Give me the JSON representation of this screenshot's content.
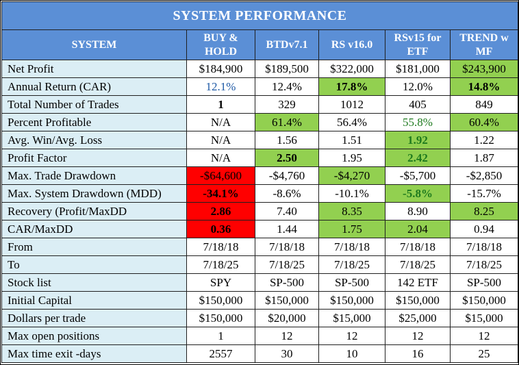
{
  "title": "SYSTEM  PERFORMANCE",
  "colors": {
    "header_blue": "#5b8fd6",
    "label_blue": "#dbeef5",
    "highlight_green": "#92d050",
    "highlight_red": "#ff0000"
  },
  "header": {
    "system": "SYSTEM",
    "columns": [
      {
        "line1": "BUY &",
        "line2": "HOLD"
      },
      {
        "line1": "BTDv7.1",
        "line2": ""
      },
      {
        "line1": "RS v16.0",
        "line2": ""
      },
      {
        "line1": "RSv15 for",
        "line2": "ETF"
      },
      {
        "line1": "TREND w",
        "line2": "MF"
      }
    ]
  },
  "rows": [
    {
      "label": "Net Profit",
      "cells": [
        "$184,900",
        "$189,500",
        "$322,000",
        "$181,000",
        "$243,900"
      ]
    },
    {
      "label": "Annual Return (CAR)",
      "cells": [
        "12.1%",
        "12.4%",
        "17.8%",
        "12.0%",
        "14.8%"
      ]
    },
    {
      "label": "Total Number of Trades",
      "cells": [
        "1",
        "329",
        "1012",
        "405",
        "849"
      ]
    },
    {
      "label": "Percent Profitable",
      "cells": [
        "N/A",
        "61.4%",
        "56.4%",
        "55.8%",
        "60.4%"
      ]
    },
    {
      "label": "Avg. Win/Avg. Loss",
      "cells": [
        "N/A",
        "1.56",
        "1.51",
        "1.92",
        "1.22"
      ]
    },
    {
      "label": "Profit Factor",
      "cells": [
        "N/A",
        "2.50",
        "1.95",
        "2.42",
        "1.87"
      ]
    },
    {
      "label": "Max. Trade Drawdown",
      "cells": [
        "-$64,600",
        "-$4,760",
        "-$4,270",
        "-$5,700",
        "-$2,850"
      ]
    },
    {
      "label": "Max. System Drawdown (MDD)",
      "cells": [
        "-34.1%",
        "-8.6%",
        "-10.1%",
        "-5.8%",
        "-15.7%"
      ]
    },
    {
      "label": "Recovery (Profit/MaxDD",
      "cells": [
        "2.86",
        "7.40",
        "8.35",
        "8.90",
        "8.25"
      ]
    },
    {
      "label": "CAR/MaxDD",
      "cells": [
        "0.36",
        "1.44",
        "1.75",
        "2.04",
        "0.94"
      ]
    },
    {
      "label": "From",
      "cells": [
        "7/18/18",
        "7/18/18",
        "7/18/18",
        "7/18/18",
        "7/18/18"
      ]
    },
    {
      "label": "To",
      "cells": [
        "7/18/25",
        "7/18/25",
        "7/18/25",
        "7/18/25",
        "7/18/25"
      ]
    },
    {
      "label": "Stock list",
      "cells": [
        "SPY",
        "SP-500",
        "SP-500",
        "142 ETF",
        "SP-500"
      ]
    },
    {
      "label": "Initial Capital",
      "cells": [
        "$150,000",
        "$150,000",
        "$150,000",
        "$150,000",
        "$150,000"
      ]
    },
    {
      "label": "Dollars per trade",
      "cells": [
        "$150,000",
        "$20,000",
        "$15,000",
        "$25,000",
        "$15,000"
      ]
    },
    {
      "label": "Max open positions",
      "cells": [
        "1",
        "12",
        "12",
        "12",
        "12"
      ]
    },
    {
      "label": "Max time exit -days",
      "cells": [
        "2557",
        "30",
        "10",
        "16",
        "25"
      ]
    }
  ]
}
